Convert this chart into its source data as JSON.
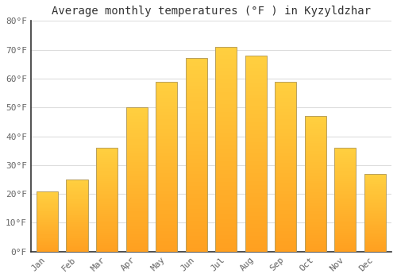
{
  "title": "Average monthly temperatures (°F ) in Kyzyldzhar",
  "months": [
    "Jan",
    "Feb",
    "Mar",
    "Apr",
    "May",
    "Jun",
    "Jul",
    "Aug",
    "Sep",
    "Oct",
    "Nov",
    "Dec"
  ],
  "values": [
    21,
    25,
    36,
    50,
    59,
    67,
    71,
    68,
    59,
    47,
    36,
    27
  ],
  "bar_color_bottom": "#FFA020",
  "bar_color_top": "#FFD040",
  "bar_edge_color": "#B8A060",
  "background_color": "#FFFFFF",
  "grid_color": "#DDDDDD",
  "text_color": "#666666",
  "ylim": [
    0,
    80
  ],
  "yticks": [
    0,
    10,
    20,
    30,
    40,
    50,
    60,
    70,
    80
  ],
  "ytick_labels": [
    "0°F",
    "10°F",
    "20°F",
    "30°F",
    "40°F",
    "50°F",
    "60°F",
    "70°F",
    "80°F"
  ],
  "title_fontsize": 10,
  "tick_fontsize": 8,
  "font_family": "monospace",
  "bar_width": 0.72
}
